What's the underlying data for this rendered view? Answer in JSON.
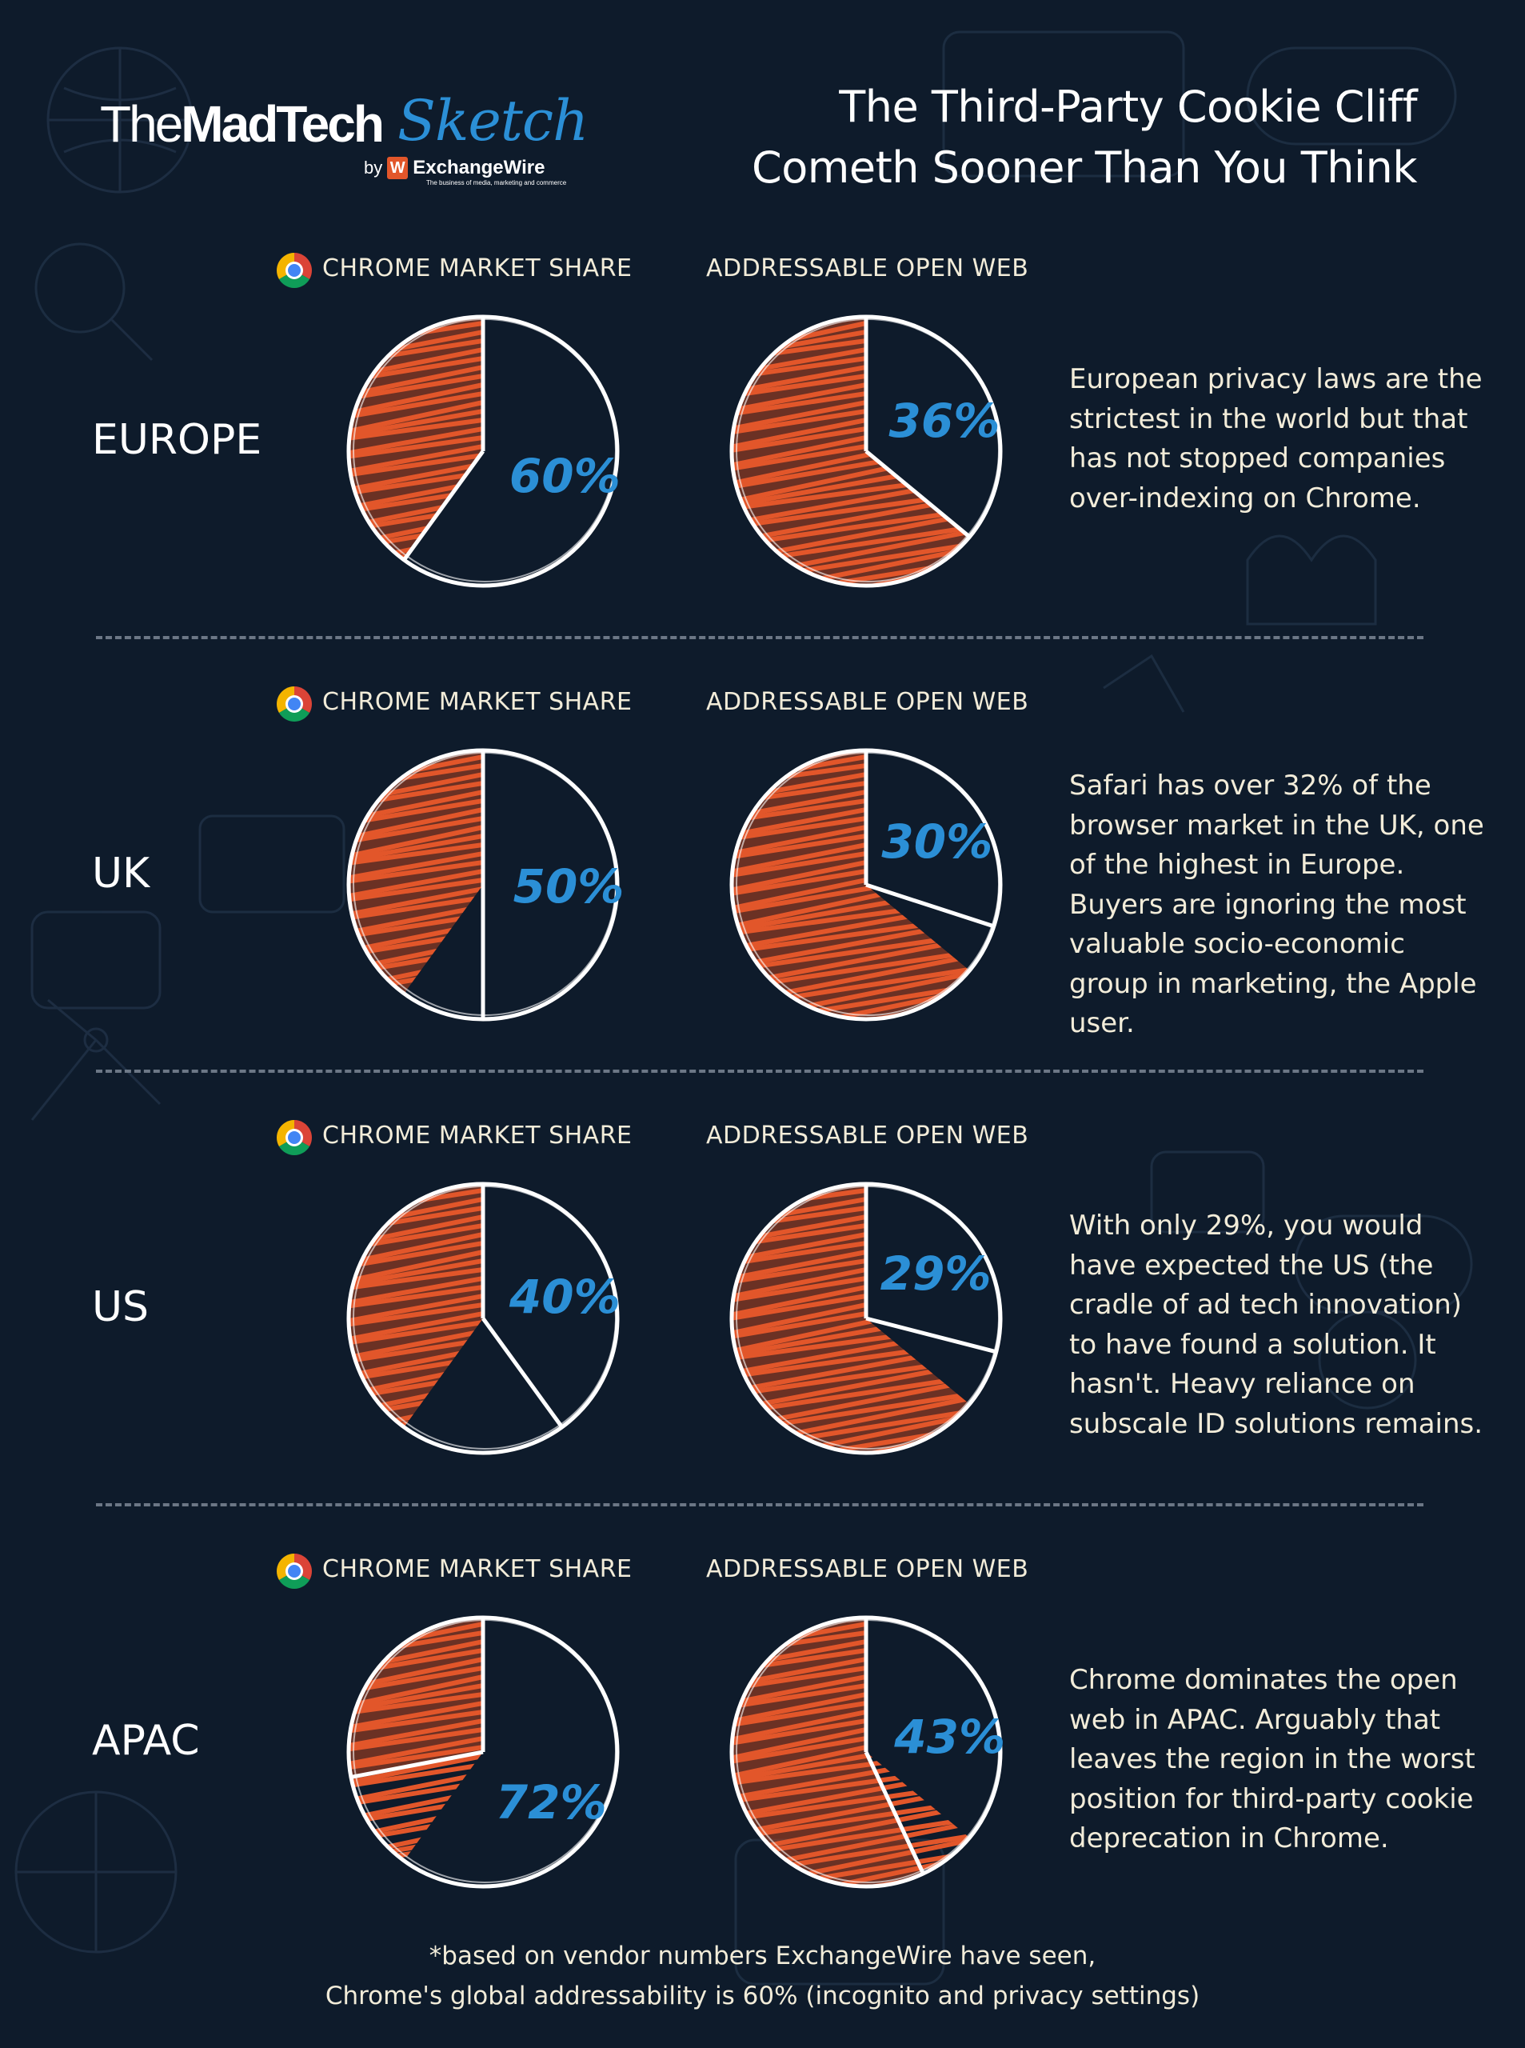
{
  "header": {
    "logo": {
      "the": "The",
      "madtech": "MadTech",
      "sketch": "Sketch",
      "by": "by",
      "w_mark": "W",
      "brand": "ExchangeWire",
      "tagline": "The business of media, marketing and commerce"
    },
    "title_line1": "The Third-Party Cookie Cliff",
    "title_line2": "Cometh Sooner Than You Think"
  },
  "labels": {
    "chrome_market_share": "CHROME MARKET SHARE",
    "addressable_open_web": "ADDRESSABLE OPEN WEB"
  },
  "colors": {
    "background": "#0e1b2b",
    "hatch": "#e2562a",
    "label_blue": "#2b8fd6",
    "chalk": "#f2ecd9"
  },
  "icons": [
    "chrome-icon"
  ],
  "regions": [
    {
      "name": "EUROPE",
      "chrome_label": "60%",
      "open_web_label": "36%",
      "note": "European privacy laws are the strictest in the world but that has not stopped companies over-indexing on Chrome."
    },
    {
      "name": "UK",
      "chrome_label": "50%",
      "open_web_label": "30%",
      "note": "Safari has over 32% of the browser market in the UK, one of the highest in Europe. Buyers are ignoring the most valuable socio-economic group in marketing, the Apple user."
    },
    {
      "name": "US",
      "chrome_label": "40%",
      "open_web_label": "29%",
      "note": "With only 29%, you would have expected the US (the cradle of ad tech innovation) to have found a solution. It hasn't. Heavy reliance on subscale ID solutions remains."
    },
    {
      "name": "APAC",
      "chrome_label": "72%",
      "open_web_label": "43%",
      "note": "Chrome dominates the open web in APAC. Arguably that leaves the region in the worst position for third-party cookie deprecation in Chrome."
    }
  ],
  "footnote": {
    "line1": "*based on vendor numbers ExchangeWire have seen,",
    "line2": "Chrome's global addressability is 60% (incognito and privacy settings)"
  },
  "chart_data": [
    {
      "type": "pie",
      "title": "EUROPE",
      "series": [
        {
          "name": "CHROME MARKET SHARE",
          "labeled_slice_percent": 60
        },
        {
          "name": "ADDRESSABLE OPEN WEB",
          "labeled_slice_percent": 36
        }
      ]
    },
    {
      "type": "pie",
      "title": "UK",
      "series": [
        {
          "name": "CHROME MARKET SHARE",
          "labeled_slice_percent": 50
        },
        {
          "name": "ADDRESSABLE OPEN WEB",
          "labeled_slice_percent": 30
        }
      ]
    },
    {
      "type": "pie",
      "title": "US",
      "series": [
        {
          "name": "CHROME MARKET SHARE",
          "labeled_slice_percent": 40
        },
        {
          "name": "ADDRESSABLE OPEN WEB",
          "labeled_slice_percent": 29
        }
      ]
    },
    {
      "type": "pie",
      "title": "APAC",
      "series": [
        {
          "name": "CHROME MARKET SHARE",
          "labeled_slice_percent": 72
        },
        {
          "name": "ADDRESSABLE OPEN WEB",
          "labeled_slice_percent": 43
        }
      ]
    }
  ]
}
